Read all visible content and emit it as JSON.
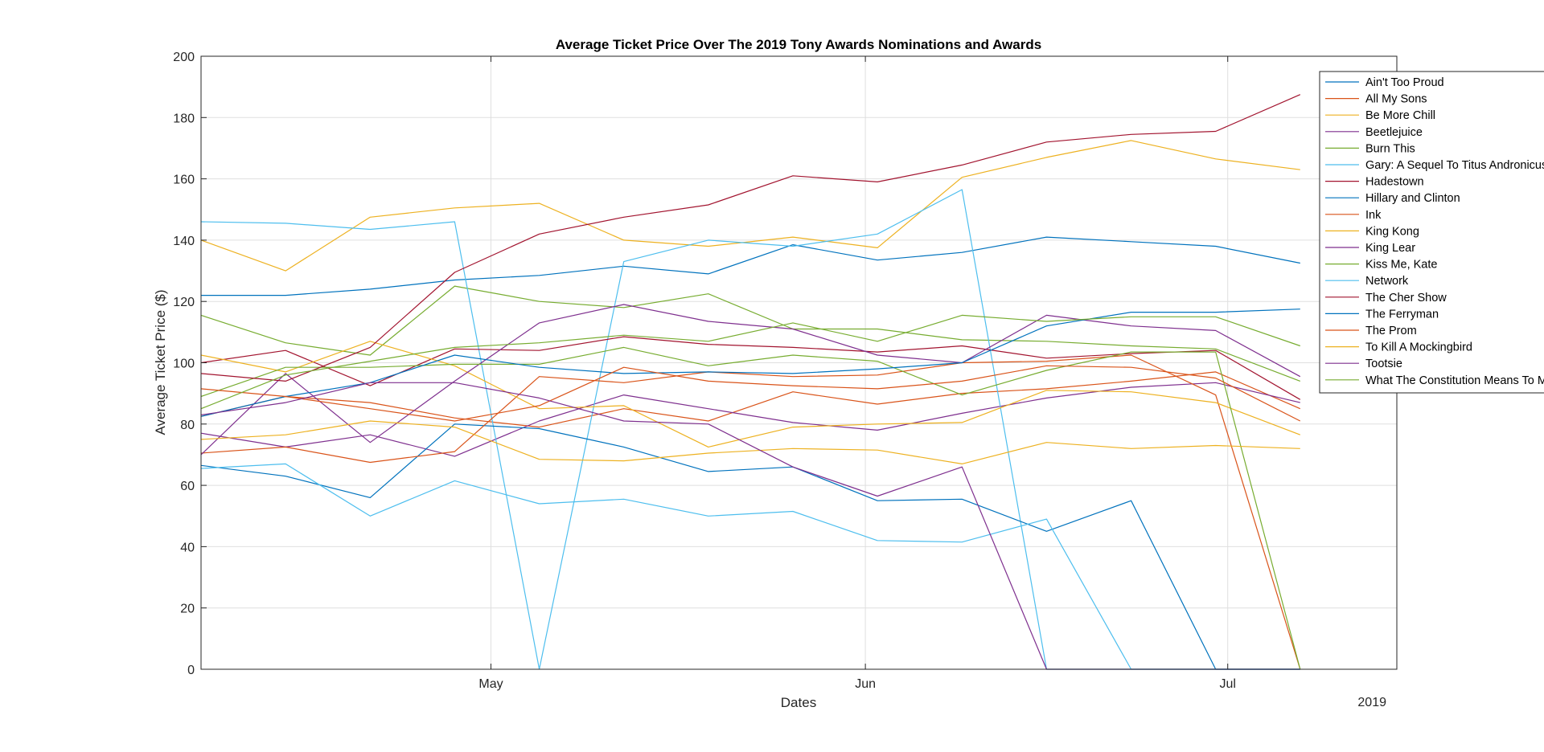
{
  "chart_data": {
    "type": "line",
    "title": "Average Ticket Price Over The 2019 Tony Awards Nominations and Awards",
    "xlabel": "Dates",
    "ylabel": "Average Ticket Price ($)",
    "x_tick_labels": [
      "May",
      "Jun",
      "Jul"
    ],
    "x_tick_dates": [
      "2019-05-01",
      "2019-06-01",
      "2019-07-01"
    ],
    "x_year_label": "2019",
    "xlim": [
      "2019-04-07",
      "2019-07-15"
    ],
    "ylim": [
      0,
      200
    ],
    "y_ticks": [
      0,
      20,
      40,
      60,
      80,
      100,
      120,
      140,
      160,
      180,
      200
    ],
    "grid": true,
    "legend_position": "top-right",
    "x": [
      "2019-04-07",
      "2019-04-14",
      "2019-04-21",
      "2019-04-28",
      "2019-05-05",
      "2019-05-12",
      "2019-05-19",
      "2019-05-26",
      "2019-06-02",
      "2019-06-09",
      "2019-06-16",
      "2019-06-23",
      "2019-06-30",
      "2019-07-07"
    ],
    "series": [
      {
        "name": "Ain't Too Proud",
        "color": "#0072BD",
        "values": [
          122,
          122,
          124,
          127,
          128.5,
          131.5,
          129,
          138.5,
          133.5,
          136,
          141,
          139.5,
          138,
          132.5
        ]
      },
      {
        "name": "All My Sons",
        "color": "#D95319",
        "values": [
          82.5,
          89,
          87,
          82,
          79,
          85,
          81,
          90.5,
          86.5,
          90,
          91.5,
          94,
          97,
          85
        ]
      },
      {
        "name": "Be More Chill",
        "color": "#EDB120",
        "values": [
          140,
          130,
          147.5,
          150.5,
          152,
          140,
          138,
          141,
          137.5,
          160.5,
          167,
          172.5,
          166.5,
          163
        ]
      },
      {
        "name": "Beetlejuice",
        "color": "#7E2F8E",
        "values": [
          77,
          72.5,
          76.5,
          69.5,
          81,
          89.5,
          85,
          80.5,
          78,
          83.5,
          88.5,
          92,
          93.5,
          87
        ]
      },
      {
        "name": "Burn This",
        "color": "#77AC30",
        "values": [
          115.5,
          106.5,
          102.5,
          125,
          120,
          118,
          122.5,
          111,
          111,
          107.5,
          107,
          105.5,
          104.5,
          94
        ]
      },
      {
        "name": "Gary: A Sequel To Titus Andronicus",
        "color": "#4DBEEE",
        "values": [
          146,
          145.5,
          143.5,
          146,
          0,
          133,
          140,
          138,
          142,
          156.5,
          0,
          0,
          0,
          0
        ]
      },
      {
        "name": "Hadestown",
        "color": "#A2142F",
        "values": [
          100,
          104,
          92.5,
          104.5,
          104,
          108.5,
          106,
          105,
          103.5,
          105.5,
          101.5,
          103,
          104,
          88
        ]
      },
      {
        "name": "Hillary and Clinton",
        "color": "#0072BD",
        "values": [
          66.5,
          63,
          56,
          80,
          78.5,
          72.5,
          64.5,
          66,
          55,
          55.5,
          45,
          55,
          0,
          0
        ]
      },
      {
        "name": "Ink",
        "color": "#D95319",
        "values": [
          70.5,
          72.5,
          67.5,
          71,
          95.5,
          93.5,
          97,
          95.5,
          96,
          100,
          100.5,
          102.5,
          89.5,
          0
        ]
      },
      {
        "name": "King Kong",
        "color": "#EDB120",
        "values": [
          102.5,
          97,
          107,
          99,
          85,
          86,
          72.5,
          79,
          80,
          80.5,
          91,
          90.5,
          87,
          76.5
        ]
      },
      {
        "name": "King Lear",
        "color": "#7E2F8E",
        "values": [
          70,
          96.5,
          74,
          94,
          113,
          119,
          113.5,
          111,
          102.5,
          100,
          115.5,
          112,
          110.5,
          95.5
        ]
      },
      {
        "name": "Kiss Me, Kate",
        "color": "#77AC30",
        "values": [
          89,
          98.5,
          98.5,
          99.5,
          99.5,
          105,
          99,
          102.5,
          100.5,
          89.5,
          97.5,
          103.5,
          103.5,
          0
        ]
      },
      {
        "name": "Network",
        "color": "#4DBEEE",
        "values": [
          65.5,
          67,
          50,
          61.5,
          54,
          55.5,
          50,
          51.5,
          42,
          41.5,
          49,
          0,
          0,
          0
        ]
      },
      {
        "name": "The Cher Show",
        "color": "#A2142F",
        "values": [
          96.5,
          94,
          105,
          129.5,
          142,
          147.5,
          151.5,
          161,
          159,
          164.5,
          172,
          174.5,
          175.5,
          187.5
        ]
      },
      {
        "name": "The Ferryman",
        "color": "#0072BD",
        "values": [
          82.5,
          89,
          93.5,
          102.5,
          98.5,
          96.5,
          97,
          96.5,
          98,
          100,
          112,
          116.5,
          116.5,
          117.5
        ]
      },
      {
        "name": "The Prom",
        "color": "#D95319",
        "values": [
          91.5,
          89,
          85,
          81,
          86,
          98.5,
          94,
          92.5,
          91.5,
          94,
          99,
          98.5,
          95,
          81
        ]
      },
      {
        "name": "To Kill A Mockingbird",
        "color": "#EDB120",
        "values": [
          75,
          76.5,
          81,
          79,
          68.5,
          68,
          70.5,
          72,
          71.5,
          67,
          74,
          72,
          73,
          72
        ]
      },
      {
        "name": "Tootsie",
        "color": "#7E2F8E",
        "values": [
          83,
          87,
          93.5,
          93.5,
          88.5,
          81,
          80,
          66,
          56.5,
          66,
          0,
          0,
          0,
          0
        ]
      },
      {
        "name": "What The Constitution Means To Me",
        "color": "#77AC30",
        "values": [
          85,
          96,
          100.5,
          105,
          106.5,
          109,
          107,
          113,
          107,
          115.5,
          113.5,
          115,
          115,
          105.5
        ]
      }
    ]
  }
}
